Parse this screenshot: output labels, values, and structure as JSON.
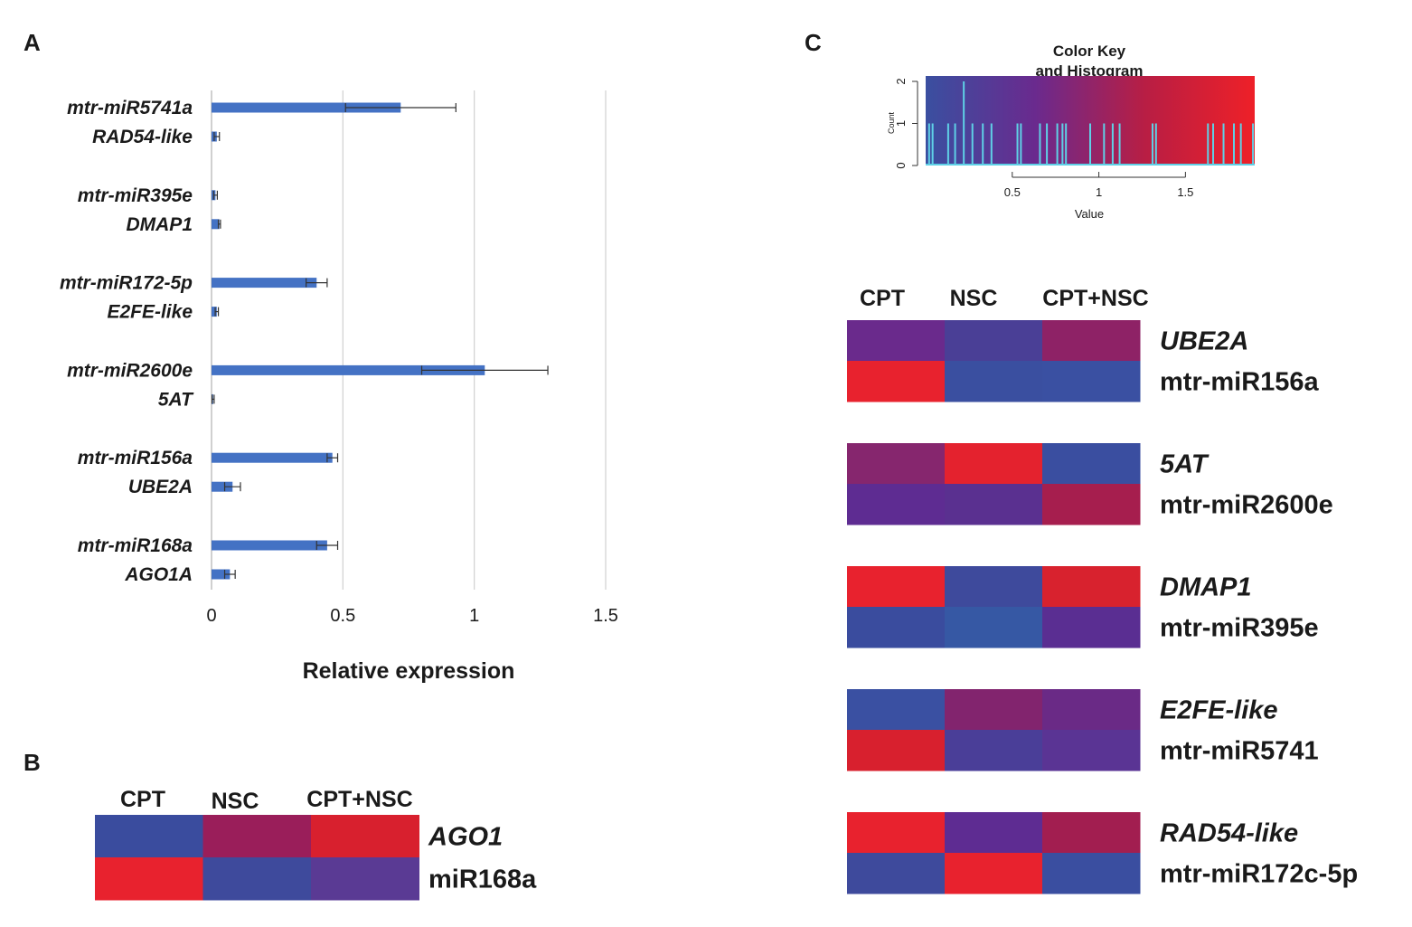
{
  "panels": {
    "a": "A",
    "b": "B",
    "c": "C"
  },
  "chart_data": [
    {
      "type": "bar",
      "orientation": "horizontal",
      "panel": "A",
      "xlabel": "Relative expression",
      "xlim": [
        0,
        1.5
      ],
      "xticks": [
        "0",
        "0.5",
        "1",
        "1.5"
      ],
      "bar_color": "#4472c4",
      "groups": [
        {
          "mirna": "mtr-miR5741a",
          "mirna_value": 0.72,
          "mirna_err": 0.21,
          "gene": "RAD54-like",
          "gene_value": 0.02,
          "gene_err": 0.01
        },
        {
          "mirna": "mtr-miR395e",
          "mirna_value": 0.015,
          "mirna_err": 0.007,
          "gene": "DMAP1",
          "gene_value": 0.03,
          "gene_err": 0.004
        },
        {
          "mirna": "mtr-miR172-5p",
          "mirna_value": 0.4,
          "mirna_err": 0.04,
          "gene": "E2FE-like",
          "gene_value": 0.02,
          "gene_err": 0.006
        },
        {
          "mirna": "mtr-miR2600e",
          "mirna_value": 1.04,
          "mirna_err": 0.24,
          "gene": "5AT",
          "gene_value": 0.006,
          "gene_err": 0.004
        },
        {
          "mirna": "mtr-miR156a",
          "mirna_value": 0.46,
          "mirna_err": 0.02,
          "gene": "UBE2A",
          "gene_value": 0.08,
          "gene_err": 0.03
        },
        {
          "mirna": "mtr-miR168a",
          "mirna_value": 0.44,
          "mirna_err": 0.04,
          "gene": "AGO1A",
          "gene_value": 0.07,
          "gene_err": 0.02
        }
      ]
    },
    {
      "type": "heatmap",
      "panel": "B",
      "columns": [
        "CPT",
        "NSC",
        "CPT+NSC"
      ],
      "pairs": [
        {
          "gene": "AGO1",
          "mirna": "miR168a",
          "gene_colors": [
            "#3a4c9e",
            "#9a1e5a",
            "#d8202e"
          ],
          "mirna_colors": [
            "#e8222e",
            "#3e4a9c",
            "#5a3a94"
          ]
        }
      ]
    },
    {
      "type": "heatmap",
      "panel": "C",
      "columns": [
        "CPT",
        "NSC",
        "CPT+NSC"
      ],
      "pairs": [
        {
          "gene": "UBE2A",
          "mirna": "mtr-miR156a",
          "gene_colors": [
            "#6a2a8c",
            "#4a3f96",
            "#8e2266"
          ],
          "mirna_colors": [
            "#e8222e",
            "#3a4fa0",
            "#3a50a2"
          ]
        },
        {
          "gene": "5AT",
          "mirna": "mtr-miR2600e",
          "gene_colors": [
            "#86266e",
            "#e4222e",
            "#3a4ea0"
          ],
          "mirna_colors": [
            "#5e2c92",
            "#5a3090",
            "#a61e4e"
          ]
        },
        {
          "gene": "DMAP1",
          "mirna": "mtr-miR395e",
          "gene_colors": [
            "#e8222e",
            "#3e4a9c",
            "#d8222e"
          ],
          "mirna_colors": [
            "#3a4c9e",
            "#3658a4",
            "#5a2e92"
          ]
        },
        {
          "gene": "E2FE-like",
          "mirna": "mtr-miR5741",
          "gene_colors": [
            "#3a50a2",
            "#82246e",
            "#6a2a86"
          ],
          "mirna_colors": [
            "#d8202e",
            "#4a3e98",
            "#5a3494"
          ]
        },
        {
          "gene": "RAD54-like",
          "mirna": "mtr-miR172c-5p",
          "gene_colors": [
            "#e8222e",
            "#5e2c92",
            "#a21e50"
          ],
          "mirna_colors": [
            "#3e4a9c",
            "#e8222e",
            "#3a4ea0"
          ]
        }
      ]
    },
    {
      "type": "bar",
      "subtype": "color-key-histogram",
      "panel": "C",
      "title": "Color Key and Histogram",
      "xlabel": "Value",
      "ylabel": "Count",
      "xlim": [
        0,
        1.9
      ],
      "ylim": [
        0,
        2
      ],
      "xticks": [
        "0.5",
        "1",
        "1.5"
      ],
      "yticks": [
        "0",
        "1",
        "2"
      ],
      "gradient": [
        "#3a4fa0",
        "#6a2a8e",
        "#b81e44",
        "#ee2028"
      ],
      "spike_color": "#5fd0e6",
      "spikes": [
        {
          "x": 0.02,
          "count": 1
        },
        {
          "x": 0.04,
          "count": 1
        },
        {
          "x": 0.13,
          "count": 1
        },
        {
          "x": 0.17,
          "count": 1
        },
        {
          "x": 0.22,
          "count": 2
        },
        {
          "x": 0.27,
          "count": 1
        },
        {
          "x": 0.33,
          "count": 1
        },
        {
          "x": 0.38,
          "count": 1
        },
        {
          "x": 0.53,
          "count": 1
        },
        {
          "x": 0.55,
          "count": 1
        },
        {
          "x": 0.66,
          "count": 1
        },
        {
          "x": 0.7,
          "count": 1
        },
        {
          "x": 0.76,
          "count": 1
        },
        {
          "x": 0.79,
          "count": 1
        },
        {
          "x": 0.81,
          "count": 1
        },
        {
          "x": 0.95,
          "count": 1
        },
        {
          "x": 1.03,
          "count": 1
        },
        {
          "x": 1.08,
          "count": 1
        },
        {
          "x": 1.12,
          "count": 1
        },
        {
          "x": 1.31,
          "count": 1
        },
        {
          "x": 1.33,
          "count": 1
        },
        {
          "x": 1.63,
          "count": 1
        },
        {
          "x": 1.66,
          "count": 1
        },
        {
          "x": 1.72,
          "count": 1
        },
        {
          "x": 1.78,
          "count": 1
        },
        {
          "x": 1.82,
          "count": 1
        },
        {
          "x": 1.89,
          "count": 1
        }
      ]
    }
  ]
}
